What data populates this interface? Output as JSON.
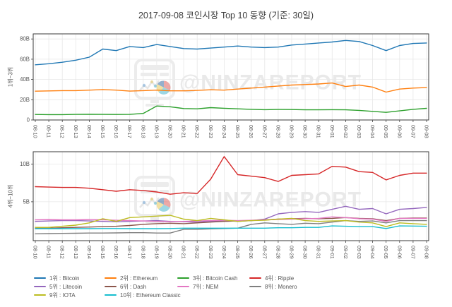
{
  "title": "2017-09-08 코인시장 Top 10 동향 (기준: 30일)",
  "watermark": {
    "text": "@NINZAREPORT"
  },
  "chart_data": [
    {
      "type": "line",
      "name": "ranks-1-to-3",
      "ylabel": "1위~3위",
      "ylim": [
        0,
        85
      ],
      "grid": true,
      "legend_position": "below-figure",
      "yticks": [
        {
          "value": 0,
          "label": "0"
        },
        {
          "value": 20,
          "label": "20B"
        },
        {
          "value": 40,
          "label": "40B"
        },
        {
          "value": 60,
          "label": "60B"
        },
        {
          "value": 80,
          "label": "80B"
        }
      ],
      "x_labels": [
        "08-10",
        "08-11",
        "08-12",
        "08-13",
        "08-14",
        "08-15",
        "08-16",
        "08-17",
        "08-18",
        "08-19",
        "08-20",
        "08-21",
        "08-22",
        "08-23",
        "08-24",
        "08-25",
        "08-26",
        "08-27",
        "08-28",
        "08-29",
        "08-30",
        "08-31",
        "09-01",
        "09-02",
        "09-03",
        "09-04",
        "09-05",
        "09-06",
        "09-07",
        "09-08"
      ],
      "series": [
        {
          "id": "bitcoin",
          "name": "1위 : Bitcoin",
          "color": "#1f77b4",
          "values": [
            54.5,
            55.5,
            57,
            59,
            62,
            70,
            68.5,
            72.5,
            71.5,
            74.5,
            72.5,
            70.5,
            70,
            71,
            72,
            73,
            72,
            71.5,
            72,
            74,
            75,
            76,
            77,
            78.5,
            77.5,
            73.5,
            68.5,
            73.5,
            75.5,
            76
          ]
        },
        {
          "id": "ethereum",
          "name": "2위 : Ethereum",
          "color": "#ff7f0e",
          "values": [
            28.4,
            28.7,
            29,
            29,
            29.5,
            30,
            29.5,
            28.5,
            29,
            29.5,
            28.8,
            28.8,
            29.2,
            29.8,
            29.5,
            30.5,
            31.5,
            32.5,
            33.5,
            34.5,
            35,
            35.5,
            36.5,
            33,
            34.5,
            32.5,
            27.5,
            30.5,
            31.5,
            32
          ]
        },
        {
          "id": "bitcoin-cash",
          "name": "3위 : Bitcoin Cash",
          "color": "#2ca02c",
          "values": [
            5.4,
            5.3,
            5.3,
            5.5,
            5.6,
            5.5,
            5.4,
            5.5,
            6.5,
            13.8,
            13,
            11.3,
            11,
            12.2,
            11.6,
            11,
            10.5,
            10.2,
            10.4,
            10.3,
            10,
            10,
            10.2,
            10,
            9.5,
            8.5,
            7.5,
            9,
            10.5,
            11.5
          ]
        }
      ]
    },
    {
      "type": "line",
      "name": "ranks-4-to-10",
      "ylabel": "4위~10위",
      "ylim": [
        -0.16,
        11.64
      ],
      "grid": true,
      "yticks": [
        {
          "value": 5,
          "label": "5B"
        },
        {
          "value": 10,
          "label": "10B"
        }
      ],
      "x_labels": [
        "08-10",
        "08-11",
        "08-12",
        "08-13",
        "08-14",
        "08-15",
        "08-16",
        "08-17",
        "08-18",
        "08-19",
        "08-20",
        "08-21",
        "08-22",
        "08-23",
        "08-24",
        "08-25",
        "08-26",
        "08-27",
        "08-28",
        "08-29",
        "08-30",
        "08-31",
        "09-01",
        "09-02",
        "09-03",
        "09-04",
        "09-05",
        "09-06",
        "09-07",
        "09-08"
      ],
      "series": [
        {
          "id": "ripple",
          "name": "4위 : Ripple",
          "color": "#d62728",
          "values": [
            7.0,
            6.95,
            6.9,
            6.9,
            6.8,
            6.6,
            6.4,
            6.6,
            6.5,
            6.3,
            6.0,
            6.2,
            6.1,
            8.0,
            11.0,
            8.6,
            8.4,
            8.2,
            7.7,
            8.5,
            8.6,
            8.7,
            9.7,
            9.6,
            9.0,
            8.9,
            7.9,
            8.5,
            8.8,
            8.8
          ]
        },
        {
          "id": "litecoin",
          "name": "5위 : Litecoin",
          "color": "#9467bd",
          "values": [
            2.4,
            2.45,
            2.5,
            2.5,
            2.45,
            2.4,
            2.35,
            2.4,
            2.45,
            2.5,
            2.4,
            2.35,
            2.3,
            2.4,
            2.5,
            2.4,
            2.5,
            2.7,
            3.4,
            3.6,
            3.7,
            3.6,
            4.0,
            4.4,
            4.0,
            4.1,
            3.4,
            4.0,
            4.1,
            4.25
          ]
        },
        {
          "id": "dash",
          "name": "6위 : Dash",
          "color": "#8c564b",
          "values": [
            1.5,
            1.5,
            1.55,
            1.6,
            1.65,
            1.7,
            1.75,
            1.85,
            2.0,
            2.1,
            2.15,
            2.1,
            2.2,
            2.3,
            2.4,
            2.45,
            2.5,
            2.6,
            2.7,
            2.75,
            2.8,
            2.75,
            2.8,
            2.9,
            2.8,
            2.75,
            2.5,
            2.8,
            2.85,
            2.85
          ]
        },
        {
          "id": "nem",
          "name": "7위 : NEM",
          "color": "#e377c2",
          "values": [
            2.6,
            2.65,
            2.6,
            2.6,
            2.65,
            2.6,
            2.55,
            2.5,
            2.45,
            2.4,
            2.35,
            2.4,
            2.45,
            2.5,
            2.55,
            2.5,
            2.55,
            2.6,
            2.65,
            2.7,
            2.75,
            2.8,
            3.0,
            2.9,
            2.75,
            2.7,
            2.4,
            2.8,
            2.8,
            2.8
          ]
        },
        {
          "id": "monero",
          "name": "8위 : Monero",
          "color": "#7f7f7f",
          "values": [
            0.75,
            0.78,
            0.8,
            0.82,
            0.85,
            0.85,
            0.87,
            0.9,
            0.9,
            0.85,
            0.85,
            1.35,
            1.35,
            1.4,
            1.45,
            1.5,
            2.0,
            2.2,
            2.1,
            2.0,
            2.15,
            2.1,
            2.3,
            2.5,
            2.4,
            2.45,
            2.2,
            2.5,
            2.5,
            2.5
          ]
        },
        {
          "id": "iota",
          "name": "9위 : IOTA",
          "color": "#bcbd22",
          "values": [
            1.6,
            1.6,
            1.75,
            1.9,
            2.2,
            2.75,
            2.4,
            2.9,
            3.0,
            3.1,
            3.2,
            2.7,
            2.5,
            2.8,
            2.6,
            2.4,
            2.5,
            2.55,
            2.7,
            2.8,
            2.5,
            2.4,
            2.45,
            2.5,
            2.3,
            2.2,
            1.7,
            2.2,
            2.1,
            2.0
          ]
        },
        {
          "id": "ethereum-classic",
          "name": "10위 : Ethereum Classic",
          "color": "#17becf",
          "values": [
            1.43,
            1.43,
            1.43,
            1.43,
            1.43,
            1.45,
            1.45,
            1.43,
            1.43,
            1.43,
            1.45,
            1.5,
            1.5,
            1.5,
            1.5,
            1.5,
            1.5,
            1.5,
            1.55,
            1.55,
            1.6,
            1.6,
            1.8,
            1.75,
            1.7,
            1.7,
            1.45,
            1.8,
            1.78,
            1.75
          ]
        }
      ]
    }
  ],
  "legend": {
    "items": [
      {
        "id": "bitcoin",
        "label": "1위 : Bitcoin",
        "color": "#1f77b4"
      },
      {
        "id": "ethereum",
        "label": "2위 : Ethereum",
        "color": "#ff7f0e"
      },
      {
        "id": "bitcoin-cash",
        "label": "3위 : Bitcoin Cash",
        "color": "#2ca02c"
      },
      {
        "id": "ripple",
        "label": "4위 : Ripple",
        "color": "#d62728"
      },
      {
        "id": "litecoin",
        "label": "5위 : Litecoin",
        "color": "#9467bd"
      },
      {
        "id": "dash",
        "label": "6위 : Dash",
        "color": "#8c564b"
      },
      {
        "id": "nem",
        "label": "7위 : NEM",
        "color": "#e377c2"
      },
      {
        "id": "monero",
        "label": "8위 : Monero",
        "color": "#7f7f7f"
      },
      {
        "id": "iota",
        "label": "9위 : IOTA",
        "color": "#bcbd22"
      },
      {
        "id": "ethereum-classic",
        "label": "10위 : Ethereum Classic",
        "color": "#17becf"
      }
    ]
  }
}
